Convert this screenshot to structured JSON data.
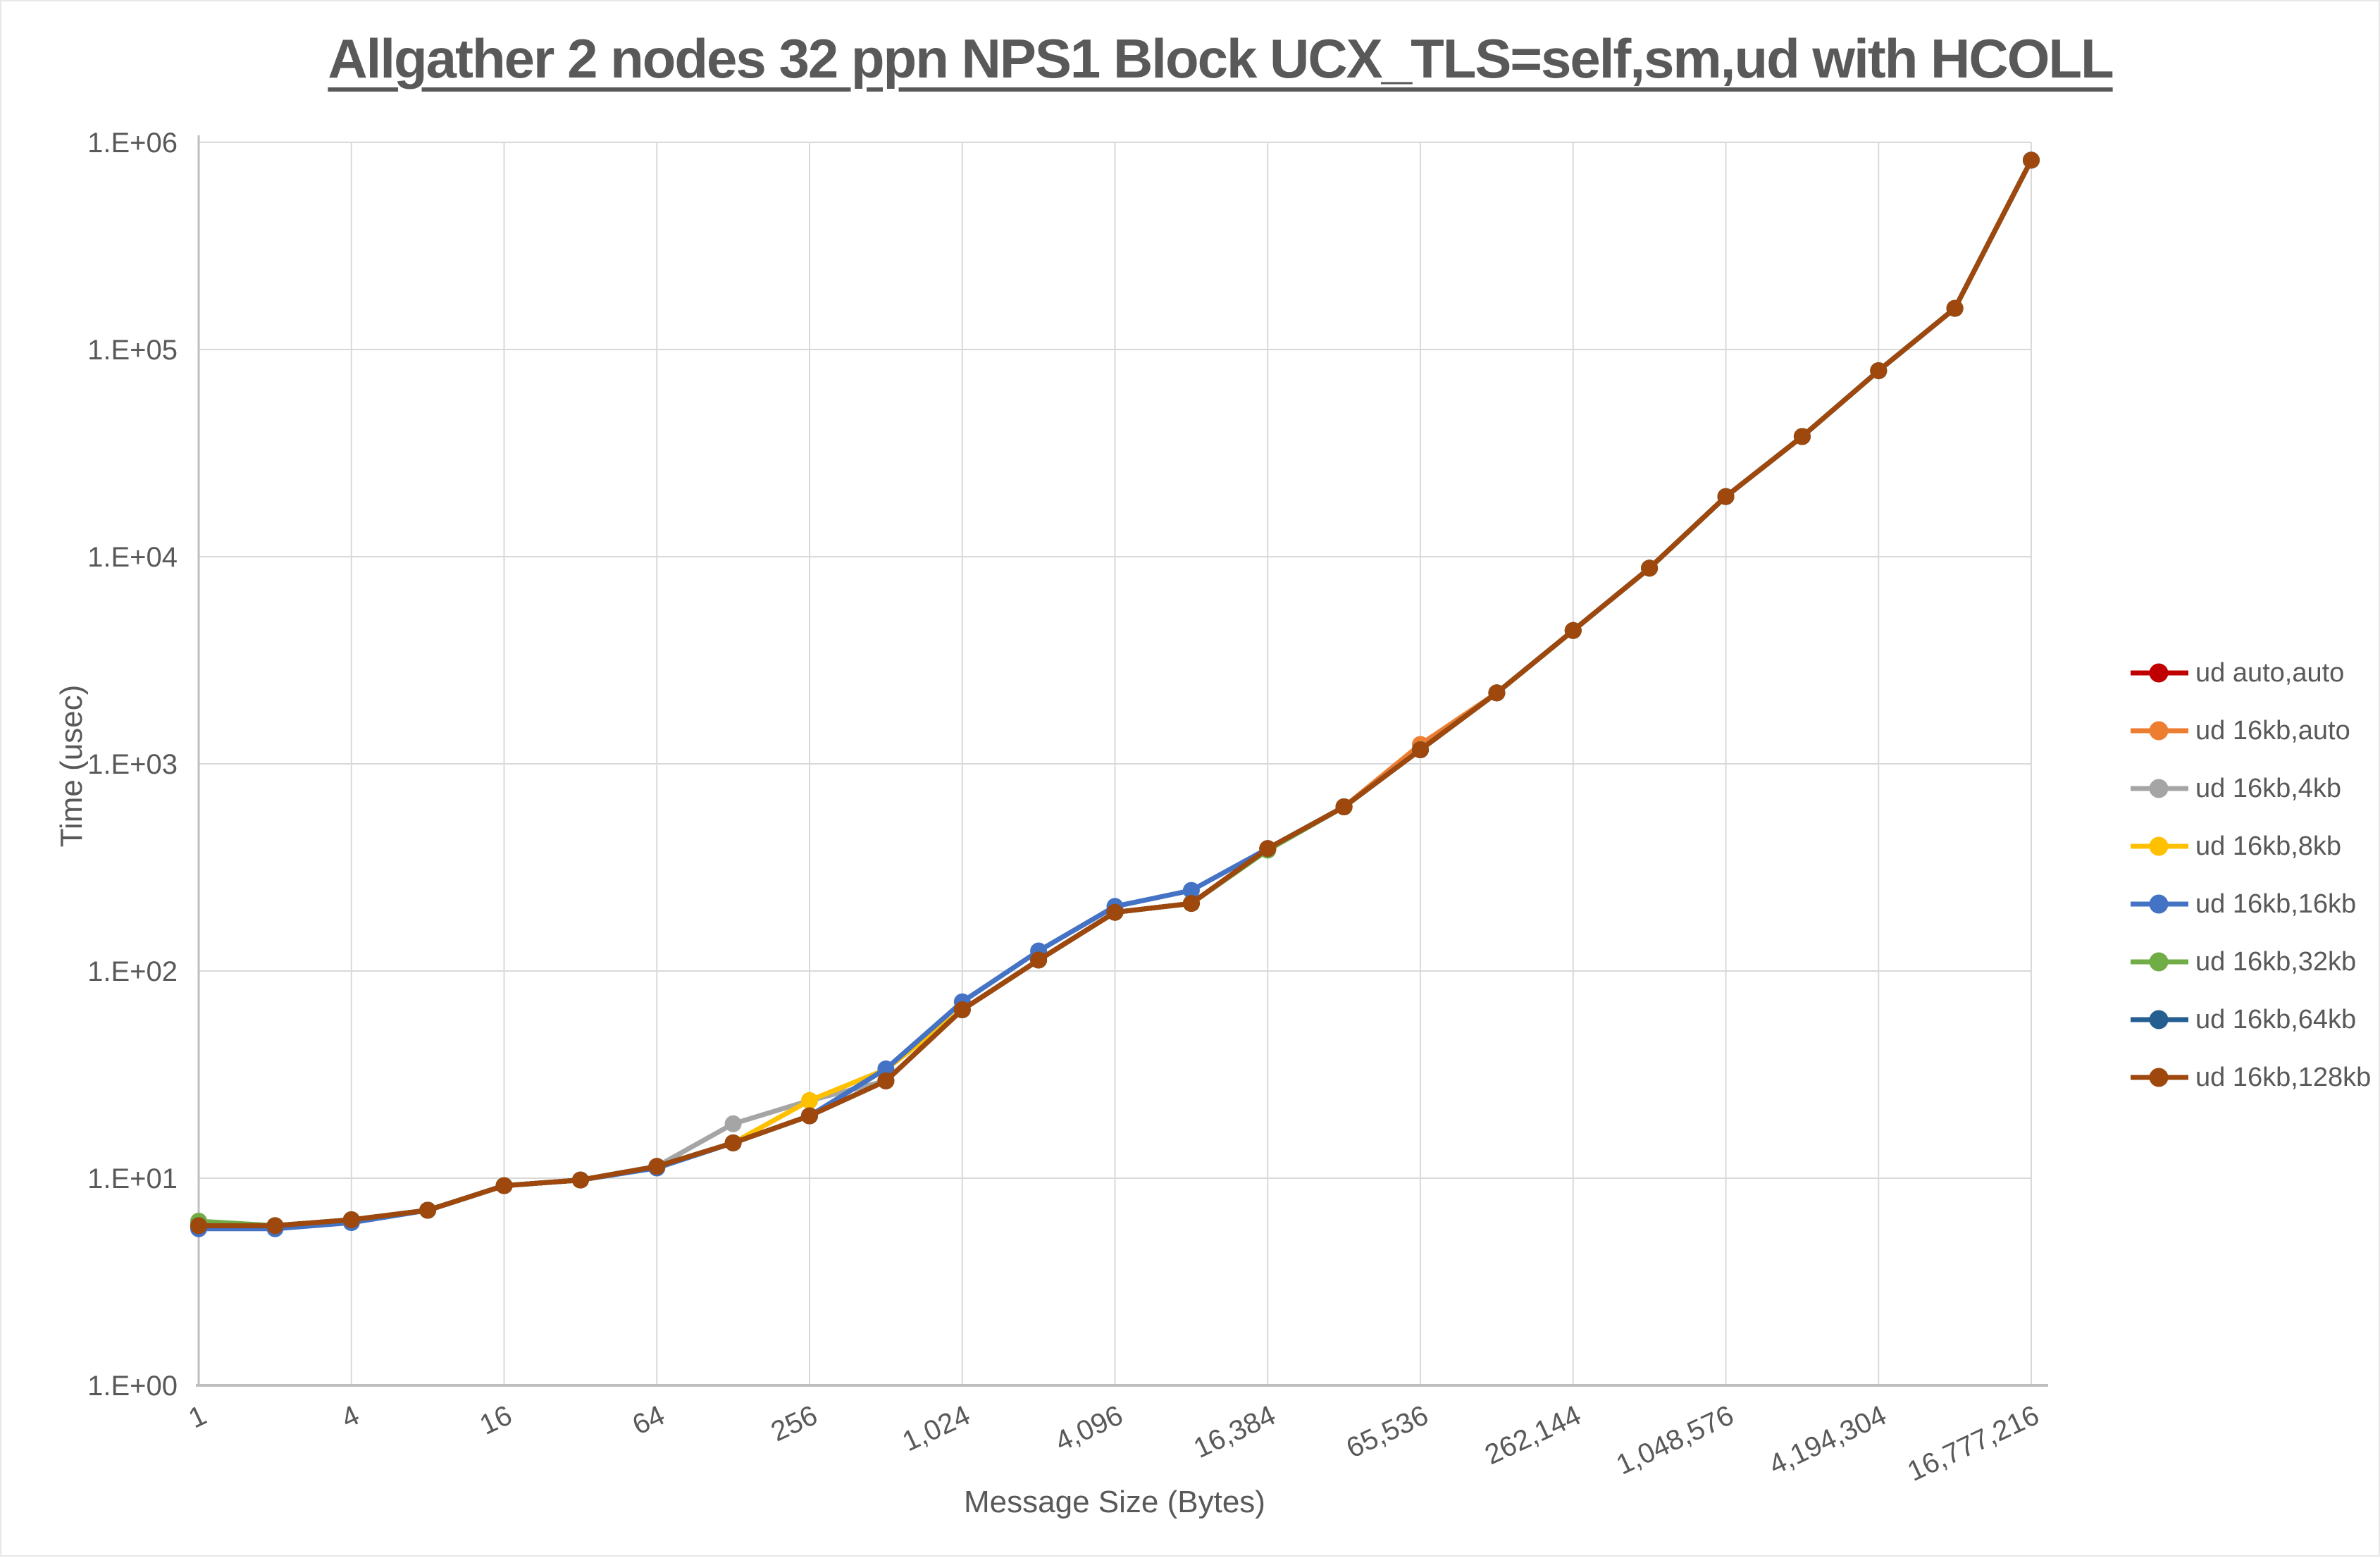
{
  "styles": {
    "text_color": "#595959",
    "gridline_color": "#D9D9D9",
    "axis_line_color": "#BFBFBF",
    "background": "#FFFFFF"
  },
  "chart_data": {
    "type": "line",
    "title": "Allgather 2 nodes 32 ppn NPS1 Block UCX_TLS=self,sm,ud with HCOLL",
    "xlabel": "Message Size (Bytes)",
    "ylabel": "Time (usec)",
    "x_scale": "log2",
    "y_scale": "log10",
    "xlim": [
      1,
      16777216
    ],
    "ylim": [
      1,
      1000000
    ],
    "grid": true,
    "legend_position": "right",
    "x_tick_labels": [
      "1",
      "4",
      "16",
      "64",
      "256",
      "1,024",
      "4,096",
      "16,384",
      "65,536",
      "262,144",
      "1,048,576",
      "4,194,304",
      "16,777,216"
    ],
    "y_tick_labels": [
      "1.E+00",
      "1.E+01",
      "1.E+02",
      "1.E+03",
      "1.E+04",
      "1.E+05",
      "1.E+06"
    ],
    "sizes": [
      1,
      2,
      4,
      8,
      16,
      32,
      64,
      128,
      256,
      512,
      1024,
      2048,
      4096,
      8192,
      16384,
      32768,
      65536,
      131072,
      262144,
      524288,
      1048576,
      2097152,
      4194304,
      8388608,
      16777216
    ],
    "series": [
      {
        "name": "ud auto,auto",
        "color": "#C00000",
        "values": [
          5.9,
          5.9,
          6.3,
          7.0,
          9.2,
          9.8,
          11.4,
          14.8,
          20,
          29.5,
          65,
          113,
          192,
          212,
          390,
          620,
          1170,
          2200,
          4400,
          8800,
          19500,
          38000,
          79000,
          158000,
          820000
        ]
      },
      {
        "name": "ud 16kb,auto",
        "color": "#ED7D31",
        "values": [
          5.9,
          5.9,
          6.3,
          7.0,
          9.2,
          9.8,
          11.4,
          14.8,
          20,
          29.5,
          65,
          113,
          192,
          212,
          390,
          620,
          1240,
          2200,
          4400,
          8800,
          19500,
          38000,
          79000,
          158000,
          820000
        ]
      },
      {
        "name": "ud 16kb,4kb",
        "color": "#A5A5A5",
        "values": [
          5.9,
          5.9,
          6.3,
          7.0,
          9.2,
          9.8,
          11.4,
          18.3,
          23.7,
          29.5,
          65,
          113,
          192,
          212,
          390,
          620,
          1170,
          2200,
          4400,
          8800,
          19500,
          38000,
          79000,
          158000,
          820000
        ]
      },
      {
        "name": "ud 16kb,8kb",
        "color": "#FFC000",
        "values": [
          5.9,
          5.9,
          6.3,
          7.0,
          9.2,
          9.8,
          11.4,
          14.8,
          23.7,
          33.5,
          65,
          113,
          192,
          212,
          390,
          620,
          1170,
          2200,
          4400,
          8800,
          19500,
          38000,
          79000,
          158000,
          820000
        ]
      },
      {
        "name": "ud 16kb,16kb",
        "color": "#4472C4",
        "values": [
          5.7,
          5.7,
          6.1,
          7.0,
          9.2,
          9.8,
          11.2,
          14.8,
          20,
          33.7,
          71,
          125,
          205,
          245,
          390,
          620,
          1170,
          2200,
          4400,
          8800,
          19500,
          38000,
          79000,
          158000,
          820000
        ]
      },
      {
        "name": "ud 16kb,32kb",
        "color": "#70AD47",
        "values": [
          6.2,
          5.9,
          6.3,
          7.0,
          9.2,
          9.8,
          11.4,
          14.8,
          20,
          29.5,
          65,
          113,
          192,
          212,
          383,
          620,
          1170,
          2200,
          4400,
          8800,
          19500,
          38000,
          79000,
          158000,
          820000
        ]
      },
      {
        "name": "ud 16kb,64kb",
        "color": "#255E91",
        "values": [
          5.9,
          5.9,
          6.3,
          7.0,
          9.2,
          9.8,
          11.4,
          14.8,
          20,
          29.5,
          65,
          113,
          192,
          212,
          390,
          620,
          1170,
          2200,
          4400,
          8800,
          19500,
          38000,
          79000,
          158000,
          820000
        ]
      },
      {
        "name": "ud 16kb,128kb",
        "color": "#9E480E",
        "values": [
          5.9,
          5.9,
          6.3,
          7.0,
          9.2,
          9.8,
          11.4,
          14.8,
          20,
          29.5,
          65,
          113,
          192,
          212,
          390,
          620,
          1170,
          2200,
          4400,
          8800,
          19500,
          38000,
          79000,
          158000,
          820000
        ]
      }
    ]
  }
}
